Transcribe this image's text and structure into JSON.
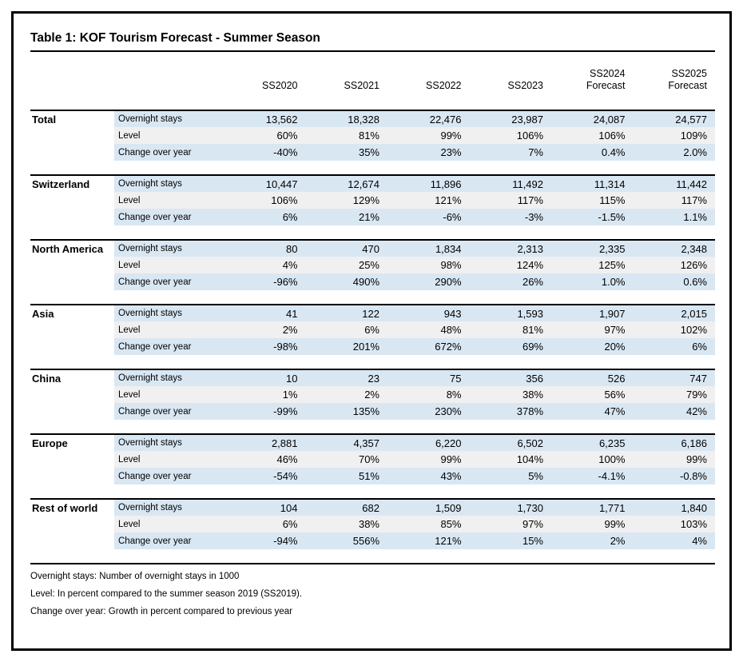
{
  "title": "Table 1: KOF Tourism Forecast - Summer Season",
  "columns": [
    {
      "label": "SS2020",
      "sublabel": ""
    },
    {
      "label": "SS2021",
      "sublabel": ""
    },
    {
      "label": "SS2022",
      "sublabel": ""
    },
    {
      "label": "SS2023",
      "sublabel": ""
    },
    {
      "label": "SS2024",
      "sublabel": "Forecast"
    },
    {
      "label": "SS2025",
      "sublabel": "Forecast"
    }
  ],
  "groups": [
    {
      "region": "Total",
      "rows": [
        {
          "label": "Overnight stays",
          "values": [
            "13,562",
            "18,328",
            "22,476",
            "23,987",
            "24,087",
            "24,577"
          ]
        },
        {
          "label": "Level",
          "values": [
            "60%",
            "81%",
            "99%",
            "106%",
            "106%",
            "109%"
          ]
        },
        {
          "label": "Change over year",
          "values": [
            "-40%",
            "35%",
            "23%",
            "7%",
            "0.4%",
            "2.0%"
          ]
        }
      ]
    },
    {
      "region": "Switzerland",
      "rows": [
        {
          "label": "Overnight stays",
          "values": [
            "10,447",
            "12,674",
            "11,896",
            "11,492",
            "11,314",
            "11,442"
          ]
        },
        {
          "label": "Level",
          "values": [
            "106%",
            "129%",
            "121%",
            "117%",
            "115%",
            "117%"
          ]
        },
        {
          "label": "Change over year",
          "values": [
            "6%",
            "21%",
            "-6%",
            "-3%",
            "-1.5%",
            "1.1%"
          ]
        }
      ]
    },
    {
      "region": "North America",
      "rows": [
        {
          "label": "Overnight stays",
          "values": [
            "80",
            "470",
            "1,834",
            "2,313",
            "2,335",
            "2,348"
          ]
        },
        {
          "label": "Level",
          "values": [
            "4%",
            "25%",
            "98%",
            "124%",
            "125%",
            "126%"
          ]
        },
        {
          "label": "Change over year",
          "values": [
            "-96%",
            "490%",
            "290%",
            "26%",
            "1.0%",
            "0.6%"
          ]
        }
      ]
    },
    {
      "region": "Asia",
      "rows": [
        {
          "label": "Overnight stays",
          "values": [
            "41",
            "122",
            "943",
            "1,593",
            "1,907",
            "2,015"
          ]
        },
        {
          "label": "Level",
          "values": [
            "2%",
            "6%",
            "48%",
            "81%",
            "97%",
            "102%"
          ]
        },
        {
          "label": "Change over year",
          "values": [
            "-98%",
            "201%",
            "672%",
            "69%",
            "20%",
            "6%"
          ]
        }
      ]
    },
    {
      "region": "China",
      "rows": [
        {
          "label": "Overnight stays",
          "values": [
            "10",
            "23",
            "75",
            "356",
            "526",
            "747"
          ]
        },
        {
          "label": "Level",
          "values": [
            "1%",
            "2%",
            "8%",
            "38%",
            "56%",
            "79%"
          ]
        },
        {
          "label": "Change over year",
          "values": [
            "-99%",
            "135%",
            "230%",
            "378%",
            "47%",
            "42%"
          ]
        }
      ]
    },
    {
      "region": "Europe",
      "rows": [
        {
          "label": "Overnight stays",
          "values": [
            "2,881",
            "4,357",
            "6,220",
            "6,502",
            "6,235",
            "6,186"
          ]
        },
        {
          "label": "Level",
          "values": [
            "46%",
            "70%",
            "99%",
            "104%",
            "100%",
            "99%"
          ]
        },
        {
          "label": "Change over year",
          "values": [
            "-54%",
            "51%",
            "43%",
            "5%",
            "-4.1%",
            "-0.8%"
          ]
        }
      ]
    },
    {
      "region": "Rest of world",
      "rows": [
        {
          "label": "Overnight stays",
          "values": [
            "104",
            "682",
            "1,509",
            "1,730",
            "1,771",
            "1,840"
          ]
        },
        {
          "label": "Level",
          "values": [
            "6%",
            "38%",
            "85%",
            "97%",
            "99%",
            "103%"
          ]
        },
        {
          "label": "Change over year",
          "values": [
            "-94%",
            "556%",
            "121%",
            "15%",
            "2%",
            "4%"
          ]
        }
      ]
    }
  ],
  "notes": [
    "Overnight stays: Number of overnight stays  in 1000",
    "Level: In percent compared to the summer season 2019 (SS2019).",
    "Change over year: Growth in percent compared to previous year"
  ],
  "colors": {
    "row_highlight_blue": "#d9e7f3",
    "row_highlight_grey": "#f0f0f0",
    "line_black": "#000000"
  }
}
